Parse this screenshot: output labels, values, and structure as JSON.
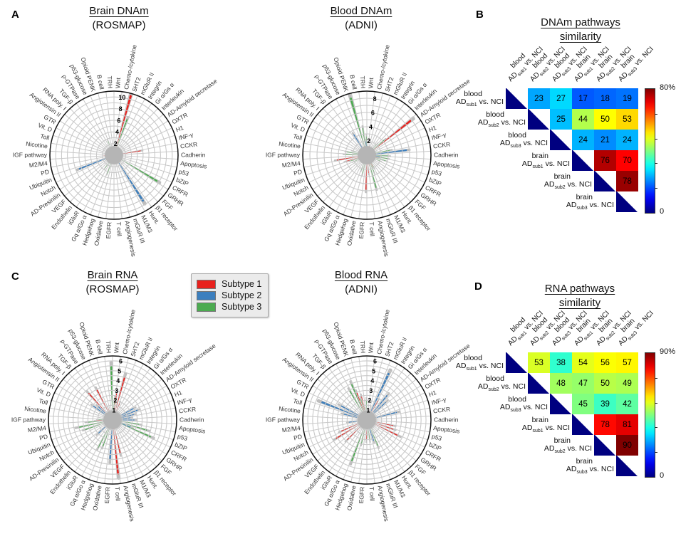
{
  "panels": {
    "A": {
      "letter": "A"
    },
    "B": {
      "letter": "B"
    },
    "C": {
      "letter": "C"
    },
    "D": {
      "letter": "D"
    }
  },
  "legend": {
    "items": [
      {
        "label": "Subtype 1",
        "color": "#e8211d"
      },
      {
        "label": "Subtype 2",
        "color": "#3c7fbe"
      },
      {
        "label": "Subtype 3",
        "color": "#4cab50"
      }
    ]
  },
  "style": {
    "grid_gray": "#c9c9c9",
    "outer_circle": "#111111",
    "center_disc_gray": "#b5b5b5",
    "bar_shadow_gray": "#bdbdbd",
    "label_color": "#333333"
  },
  "polar_categories": [
    "Wnt",
    "Chemo-/cytokine",
    "5HT2",
    "mGluR II",
    "Integrin",
    "Gi α/Gs α",
    "Interleukin",
    "AD-Amyloid secretase",
    "OXTR",
    "H1",
    "INF-γ",
    "CCKR",
    "Cadherin",
    "Apoptosis",
    "p53",
    "bZIP",
    "CRFR",
    "GRHR",
    "FGF",
    "β1 receptor",
    "Hunt.",
    "M1/M3",
    "mGluR III",
    "Angiogenesis",
    "T cell",
    "EGFR",
    "Oxidative",
    "Hedgehog",
    "Gq α/Go α",
    "iGluR",
    "Endothelin",
    "VEGF",
    "AD-Presinilin",
    "Notch",
    "Ubiquitin",
    "PD",
    "M2/M4",
    "IGF pathway",
    "Nicotine",
    "Toll",
    "Vit. D",
    "GTR",
    "Angiotensin II",
    "RNA poly. I",
    "TGF-β",
    "ρ-GTPase",
    "p53-glucose",
    "Opioid PENK",
    "B cell",
    "TRH"
  ],
  "chart_data": [
    {
      "id": "brain-dnam",
      "type": "polar-bar",
      "title": "Brain DNAm",
      "subtitle": "(ROSMAP)",
      "rmax": 11,
      "ring_step": 1,
      "ticks": [
        2,
        4,
        6,
        8,
        10
      ],
      "series": [
        {
          "name": "Subtype 1",
          "values": [
            0.7,
            1.0,
            10.6,
            1.2,
            0.5,
            0.6,
            0.7,
            0.8,
            0.5,
            0.7,
            1.1,
            4.6,
            0.6,
            1.3,
            0.8,
            0.6,
            0.5,
            0.7,
            0.4,
            0.6,
            0.5,
            0.8,
            0.6,
            1.6,
            0.9,
            0.5,
            0.6,
            0.4,
            0.7,
            0.5,
            0.6,
            0.8,
            0.5,
            0.6,
            0.9,
            0.7,
            1.6,
            1.8,
            1.5,
            0.6,
            0.5,
            0.7,
            0.9,
            0.6,
            0.8,
            0.5,
            1.0,
            0.7,
            0.6,
            0.9
          ]
        },
        {
          "name": "Subtype 2",
          "values": [
            0.6,
            0.8,
            1.1,
            0.7,
            0.5,
            0.6,
            0.8,
            0.5,
            0.7,
            0.6,
            0.9,
            1.0,
            0.5,
            0.6,
            0.7,
            0.8,
            0.6,
            0.7,
            0.5,
            0.7,
            9.3,
            0.5,
            0.8,
            0.6,
            0.7,
            0.5,
            0.6,
            0.7,
            0.5,
            0.8,
            0.6,
            0.7,
            0.5,
            0.6,
            6.4,
            1.1,
            0.9,
            0.7,
            0.6,
            0.5,
            0.7,
            0.6,
            0.8,
            0.5,
            0.6,
            0.7,
            0.5,
            0.8,
            0.6,
            1.2
          ]
        },
        {
          "name": "Subtype 3",
          "values": [
            1.0,
            0.8,
            6.5,
            0.6,
            0.5,
            0.7,
            0.6,
            0.8,
            0.5,
            0.6,
            0.7,
            0.9,
            0.6,
            0.5,
            1.2,
            1.4,
            8.6,
            0.5,
            0.7,
            0.6,
            0.5,
            0.8,
            0.9,
            0.7,
            0.6,
            0.5,
            0.8,
            3.3,
            0.7,
            2.6,
            0.6,
            0.8,
            0.5,
            0.7,
            0.6,
            0.9,
            1.1,
            0.6,
            0.8,
            0.5,
            0.6,
            0.7,
            0.5,
            0.8,
            0.6,
            0.5,
            2.6,
            0.9,
            0.8,
            1.4
          ]
        }
      ]
    },
    {
      "id": "blood-dnam",
      "type": "polar-bar",
      "title": "Blood DNAm",
      "subtitle": "(ADNI)",
      "rmax": 9,
      "ring_step": 1,
      "ticks": [
        2,
        4,
        6,
        8
      ],
      "series": [
        {
          "name": "Subtype 1",
          "values": [
            0.7,
            1.0,
            1.4,
            0.6,
            0.5,
            0.8,
            0.6,
            7.8,
            0.5,
            0.7,
            0.9,
            0.6,
            0.5,
            0.8,
            1.6,
            0.7,
            0.6,
            0.5,
            0.8,
            0.6,
            0.7,
            1.8,
            0.6,
            1.5,
            2.5,
            4.8,
            0.5,
            0.6,
            0.8,
            0.5,
            0.7,
            0.6,
            0.5,
            0.8,
            0.6,
            3.0,
            4.2,
            0.7,
            0.6,
            0.5,
            0.8,
            0.6,
            0.7,
            0.5,
            0.6,
            0.8,
            0.7,
            0.9,
            0.6,
            0.8
          ]
        },
        {
          "name": "Subtype 2",
          "values": [
            0.6,
            0.8,
            0.5,
            0.7,
            0.6,
            0.5,
            0.8,
            0.7,
            0.6,
            0.5,
            0.9,
            5.6,
            0.6,
            1.8,
            0.5,
            0.7,
            0.6,
            0.8,
            0.5,
            0.6,
            0.7,
            0.5,
            0.8,
            0.6,
            0.5,
            0.7,
            0.6,
            0.5,
            0.8,
            0.6,
            0.7,
            0.5,
            0.6,
            0.8,
            0.5,
            0.7,
            0.6,
            0.8,
            0.5,
            0.6,
            0.7,
            0.5,
            0.8,
            0.6,
            0.5,
            3.4,
            0.6,
            0.8,
            0.5,
            2.0
          ]
        },
        {
          "name": "Subtype 3",
          "values": [
            1.4,
            1.2,
            0.8,
            0.6,
            0.9,
            2.0,
            3.2,
            0.7,
            0.6,
            1.5,
            3.3,
            0.8,
            3.0,
            2.9,
            2.7,
            2.0,
            0.6,
            0.8,
            0.5,
            0.7,
            2.0,
            2.5,
            4.7,
            0.8,
            0.6,
            0.7,
            2.6,
            2.2,
            0.6,
            0.8,
            0.5,
            0.7,
            0.6,
            2.0,
            2.4,
            0.8,
            0.6,
            3.0,
            2.8,
            2.0,
            0.6,
            0.8,
            0.5,
            0.7,
            0.6,
            0.8,
            1.2,
            8.3,
            3.8,
            2.6
          ]
        }
      ]
    },
    {
      "id": "brain-rna",
      "type": "polar-bar",
      "title": "Brain RNA",
      "subtitle": "(ROSMAP)",
      "rmax": 6.5,
      "ring_step": 0.5,
      "ticks": [
        1,
        2,
        3,
        4,
        5,
        6
      ],
      "series": [
        {
          "name": "Subtype 1",
          "values": [
            0.8,
            2.7,
            4.5,
            1.8,
            0.6,
            0.5,
            0.7,
            0.6,
            0.5,
            0.8,
            0.6,
            0.7,
            0.5,
            0.6,
            0.8,
            0.5,
            0.7,
            0.6,
            0.5,
            0.8,
            0.6,
            0.7,
            0.5,
            3.4,
            5.5,
            0.9,
            0.6,
            0.5,
            0.8,
            0.6,
            0.7,
            0.5,
            0.6,
            0.8,
            0.5,
            0.7,
            0.6,
            1.6,
            0.8,
            0.6,
            0.7,
            0.5,
            0.6,
            0.8,
            3.6,
            0.7,
            3.4,
            1.2,
            0.6,
            0.8
          ]
        },
        {
          "name": "Subtype 2",
          "values": [
            0.6,
            0.5,
            0.8,
            0.6,
            0.7,
            0.5,
            0.6,
            0.8,
            2.4,
            2.7,
            2.2,
            1.8,
            2.2,
            0.6,
            0.5,
            2.0,
            0.7,
            0.6,
            0.5,
            0.8,
            0.6,
            0.7,
            0.5,
            0.6,
            0.8,
            4.0,
            0.9,
            0.6,
            0.7,
            0.5,
            0.6,
            2.0,
            0.5,
            0.8,
            0.6,
            0.7,
            0.5,
            0.6,
            0.8,
            0.5,
            0.7,
            0.6,
            2.4,
            2.0,
            0.6,
            0.5,
            0.7,
            0.6,
            0.8,
            0.5
          ]
        },
        {
          "name": "Subtype 3",
          "values": [
            2.2,
            0.8,
            0.6,
            0.7,
            0.5,
            0.6,
            0.8,
            0.5,
            0.7,
            0.6,
            0.5,
            0.8,
            0.6,
            2.7,
            3.6,
            4.2,
            0.6,
            0.5,
            0.8,
            0.6,
            0.7,
            0.5,
            0.6,
            0.8,
            0.5,
            0.7,
            0.6,
            2.8,
            3.1,
            0.5,
            0.6,
            0.8,
            0.5,
            0.7,
            2.9,
            3.5,
            2.5,
            1.4,
            0.6,
            0.8,
            0.5,
            0.7,
            0.6,
            1.0,
            0.8,
            0.6,
            0.5,
            0.7,
            0.8,
            5.4
          ]
        }
      ]
    },
    {
      "id": "blood-rna",
      "type": "polar-bar",
      "title": "Blood RNA",
      "subtitle": "(ADNI)",
      "rmax": 6.5,
      "ring_step": 0.5,
      "ticks": [
        1,
        2,
        3,
        4,
        5,
        6
      ],
      "series": [
        {
          "name": "Subtype 1",
          "values": [
            0.6,
            0.8,
            1.2,
            0.5,
            2.2,
            0.6,
            0.7,
            0.5,
            0.8,
            0.6,
            0.5,
            0.7,
            0.8,
            0.6,
            2.7,
            2.8,
            3.5,
            0.7,
            0.6,
            0.5,
            0.8,
            0.6,
            0.6,
            0.5,
            0.7,
            2.0,
            0.6,
            0.8,
            0.5,
            0.7,
            0.6,
            2.8,
            0.8,
            3.6,
            2.8,
            0.6,
            0.5,
            0.7,
            0.6,
            0.8,
            0.5,
            0.6,
            0.7,
            0.5,
            0.8,
            0.6,
            0.7,
            2.9,
            2.4,
            0.8
          ]
        },
        {
          "name": "Subtype 2",
          "values": [
            0.5,
            0.7,
            0.6,
            5.2,
            0.8,
            3.2,
            2.6,
            0.6,
            0.5,
            0.9,
            3.1,
            0.6,
            0.8,
            0.5,
            0.6,
            0.7,
            0.5,
            0.8,
            0.6,
            0.7,
            0.5,
            0.6,
            2.2,
            0.8,
            0.5,
            0.6,
            0.7,
            0.5,
            0.8,
            0.6,
            0.5,
            0.7,
            0.6,
            0.8,
            0.5,
            0.6,
            1.8,
            0.7,
            0.5,
            2.4,
            4.9,
            3.0,
            0.6,
            0.8,
            0.5,
            0.7,
            0.6,
            0.5,
            0.8,
            0.6
          ]
        },
        {
          "name": "Subtype 3",
          "values": [
            0.9,
            0.8,
            0.6,
            0.8,
            0.5,
            0.7,
            0.6,
            0.5,
            0.8,
            0.6,
            0.7,
            0.5,
            0.6,
            0.8,
            0.5,
            0.7,
            0.6,
            0.5,
            0.8,
            0.6,
            1.2,
            2.8,
            0.5,
            2.0,
            1.6,
            0.6,
            2.4,
            4.4,
            0.8,
            0.6,
            0.5,
            0.7,
            0.6,
            0.8,
            0.5,
            0.6,
            0.7,
            0.5,
            0.8,
            0.6,
            0.5,
            0.7,
            0.6,
            0.8,
            0.5,
            3.4,
            3.9,
            2.2,
            1.3,
            2.0
          ]
        }
      ]
    },
    {
      "id": "dnam-similarity",
      "type": "heatmap-triangular",
      "title_lines": [
        "DNAm pathways",
        "similarity"
      ],
      "groups": [
        {
          "tissue": "blood",
          "sub": "sub1"
        },
        {
          "tissue": "blood",
          "sub": "sub2"
        },
        {
          "tissue": "blood",
          "sub": "sub3"
        },
        {
          "tissue": "brain",
          "sub": "sub1"
        },
        {
          "tissue": "brain",
          "sub": "sub2"
        },
        {
          "tissue": "brain",
          "sub": "sub3"
        }
      ],
      "suffix": "vs. NCI",
      "matrix": [
        [
          null,
          23,
          27,
          17,
          18,
          19
        ],
        [
          null,
          null,
          25,
          44,
          50,
          53
        ],
        [
          null,
          null,
          null,
          24,
          21,
          24
        ],
        [
          null,
          null,
          null,
          null,
          76,
          70
        ],
        [
          null,
          null,
          null,
          null,
          null,
          78
        ],
        [
          null,
          null,
          null,
          null,
          null,
          null
        ]
      ],
      "scale": {
        "max": 80,
        "max_label": "80%",
        "min_label": "0",
        "colormap": "jet"
      }
    },
    {
      "id": "rna-similarity",
      "type": "heatmap-triangular",
      "title_lines": [
        "RNA pathways",
        "similarity"
      ],
      "groups": [
        {
          "tissue": "blood",
          "sub": "sub1"
        },
        {
          "tissue": "blood",
          "sub": "sub2"
        },
        {
          "tissue": "blood",
          "sub": "sub3"
        },
        {
          "tissue": "brain",
          "sub": "sub1"
        },
        {
          "tissue": "brain",
          "sub": "sub2"
        },
        {
          "tissue": "brain",
          "sub": "sub3"
        }
      ],
      "suffix": "vs. NCI",
      "matrix": [
        [
          null,
          53,
          38,
          54,
          56,
          57
        ],
        [
          null,
          null,
          48,
          47,
          50,
          49
        ],
        [
          null,
          null,
          null,
          45,
          39,
          42
        ],
        [
          null,
          null,
          null,
          null,
          78,
          81
        ],
        [
          null,
          null,
          null,
          null,
          null,
          90
        ],
        [
          null,
          null,
          null,
          null,
          null,
          null
        ]
      ],
      "scale": {
        "max": 90,
        "max_label": "90%",
        "min_label": "0",
        "colormap": "jet"
      }
    }
  ]
}
